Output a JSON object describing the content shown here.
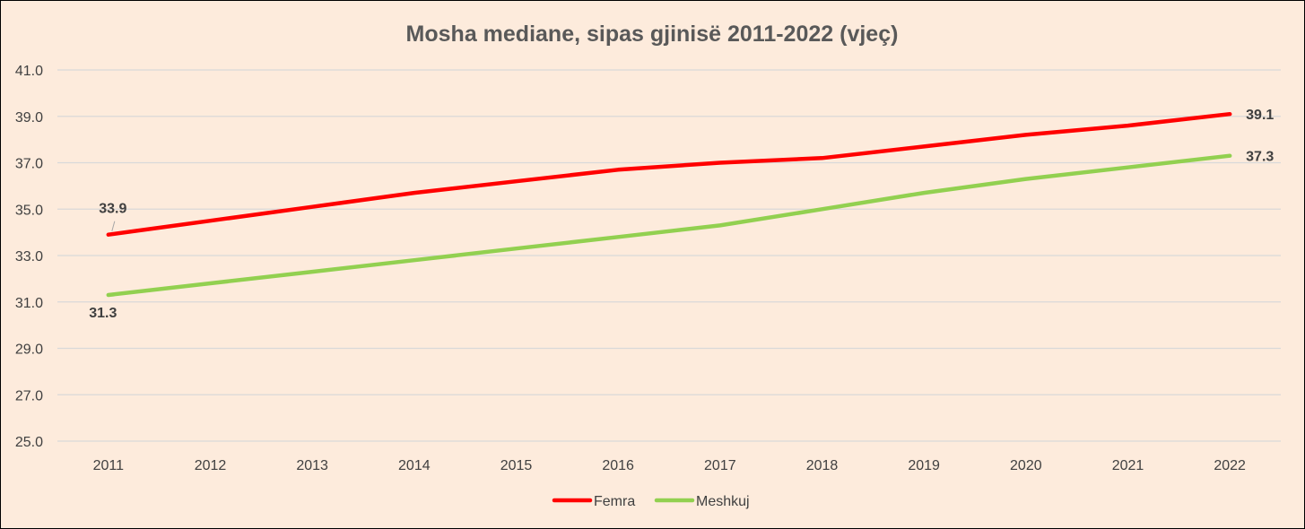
{
  "chart_data": {
    "type": "line",
    "title": "Mosha mediane, sipas gjinisë 2011-2022 (vjeç)",
    "xlabel": "",
    "ylabel": "",
    "categories": [
      "2011",
      "2012",
      "2013",
      "2014",
      "2015",
      "2016",
      "2017",
      "2018",
      "2019",
      "2020",
      "2021",
      "2022"
    ],
    "ylim": [
      25.0,
      41.0
    ],
    "yticks": [
      "25.0",
      "27.0",
      "29.0",
      "31.0",
      "33.0",
      "35.0",
      "37.0",
      "39.0",
      "41.0"
    ],
    "grid": true,
    "legend_position": "bottom",
    "series": [
      {
        "name": "Femra",
        "color": "#ff0000",
        "values": [
          33.9,
          34.5,
          35.1,
          35.7,
          36.2,
          36.7,
          37.0,
          37.2,
          37.7,
          38.2,
          38.6,
          39.1
        ],
        "labels": {
          "first": "33.9",
          "last": "39.1"
        }
      },
      {
        "name": "Meshkuj",
        "color": "#92d050",
        "values": [
          31.3,
          31.8,
          32.3,
          32.8,
          33.3,
          33.8,
          34.3,
          35.0,
          35.7,
          36.3,
          36.8,
          37.3
        ],
        "labels": {
          "first": "31.3",
          "last": "37.3"
        }
      }
    ]
  }
}
